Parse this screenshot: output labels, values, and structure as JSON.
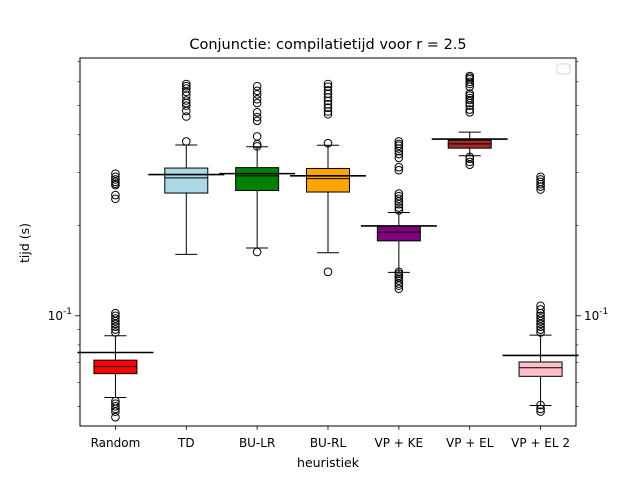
{
  "chart_data": {
    "type": "boxplot",
    "title": "Conjunctie: compilatietijd voor r = 2.5",
    "xlabel": "heuristiek",
    "ylabel": "tijd (s)",
    "yscale": "log",
    "ylim": [
      0.043,
      0.72
    ],
    "yticks": [
      {
        "value": 0.1,
        "label": "10^-1"
      }
    ],
    "yticks_right": true,
    "legend": {
      "placement": "top-right",
      "entries": []
    },
    "grid": false,
    "categories": [
      "Random",
      "TD",
      "BU-LR",
      "BU-RL",
      "VP + KE",
      "VP + EL",
      "VP + EL 2"
    ],
    "boxes": [
      {
        "label": "Random",
        "color": "#ff0000",
        "mean_line": 0.0755,
        "whisker_high": 0.0858,
        "q3": 0.0712,
        "median": 0.0678,
        "q1": 0.0642,
        "whisker_low": 0.0535,
        "outliers": [
          0.102,
          0.1,
          0.098,
          0.096,
          0.094,
          0.092,
          0.09,
          0.088,
          0.245,
          0.252,
          0.272,
          0.275,
          0.279,
          0.284,
          0.29,
          0.297,
          0.052,
          0.051,
          0.05,
          0.049,
          0.048,
          0.046
        ]
      },
      {
        "label": "TD",
        "color": "#add8e6",
        "mean_line": 0.295,
        "whisker_high": 0.37,
        "q3": 0.31,
        "median": 0.2875,
        "q1": 0.256,
        "whisker_low": 0.16,
        "outliers": [
          0.38,
          0.46,
          0.48,
          0.5,
          0.51,
          0.52,
          0.54,
          0.555,
          0.57,
          0.58,
          0.59
        ]
      },
      {
        "label": "BU-LR",
        "color": "#008000",
        "mean_line": 0.297,
        "whisker_high": 0.365,
        "q3": 0.311,
        "median": 0.292,
        "q1": 0.261,
        "whisker_low": 0.168,
        "outliers": [
          0.366,
          0.372,
          0.395,
          0.445,
          0.458,
          0.475,
          0.51,
          0.525,
          0.545,
          0.56,
          0.58,
          0.163
        ]
      },
      {
        "label": "BU-RL",
        "color": "#ffa500",
        "mean_line": 0.292,
        "whisker_high": 0.369,
        "q3": 0.309,
        "median": 0.286,
        "q1": 0.258,
        "whisker_low": 0.162,
        "outliers": [
          0.375,
          0.468,
          0.478,
          0.492,
          0.505,
          0.518,
          0.532,
          0.548,
          0.562,
          0.578,
          0.59,
          0.14
        ]
      },
      {
        "label": "VP + KE",
        "color": "#800080",
        "mean_line": 0.199,
        "whisker_high": 0.2205,
        "q3": 0.1985,
        "median": 0.1898,
        "q1": 0.1775,
        "whisker_low": 0.1395,
        "outliers": [
          0.335,
          0.345,
          0.353,
          0.36,
          0.368,
          0.373,
          0.38,
          0.305,
          0.312,
          0.255,
          0.25,
          0.245,
          0.24,
          0.235,
          0.229,
          0.224,
          0.14,
          0.138,
          0.136,
          0.134,
          0.131,
          0.128,
          0.126,
          0.123
        ]
      },
      {
        "label": "VP + EL",
        "color": "#a52a2a",
        "mean_line": 0.387,
        "whisker_high": 0.408,
        "q3": 0.384,
        "median": 0.373,
        "q1": 0.361,
        "whisker_low": 0.3405,
        "outliers": [
          0.475,
          0.485,
          0.5,
          0.51,
          0.522,
          0.53,
          0.54,
          0.548,
          0.578,
          0.59,
          0.6,
          0.612,
          0.62,
          0.627,
          0.338,
          0.333,
          0.325,
          0.318
        ]
      },
      {
        "label": "VP + EL 2",
        "color": "#ffc0cb",
        "mean_line": 0.0738,
        "whisker_high": 0.0862,
        "q3": 0.0702,
        "median": 0.0672,
        "q1": 0.0629,
        "whisker_low": 0.0503,
        "outliers": [
          0.29,
          0.284,
          0.279,
          0.274,
          0.269,
          0.263,
          0.108,
          0.105,
          0.102,
          0.1,
          0.098,
          0.096,
          0.094,
          0.092,
          0.09,
          0.088,
          0.0505,
          0.049,
          0.048
        ]
      }
    ]
  }
}
